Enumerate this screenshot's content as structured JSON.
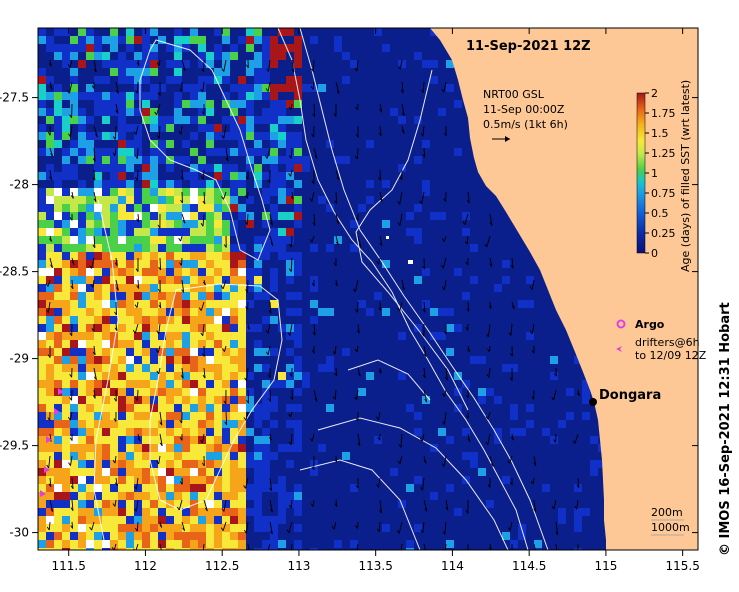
{
  "map": {
    "title": "11-Sep-2021 12Z",
    "product_label": [
      "NRT00 GSL",
      "11-Sep 00:00Z",
      "0.5m/s (1kt 6h)"
    ],
    "x_ticks": [
      "111.5",
      "112",
      "112.5",
      "113",
      "113.5",
      "114",
      "114.5",
      "115",
      "115.5"
    ],
    "y_ticks": [
      "-27.5",
      "-28",
      "-28.5",
      "-29",
      "-29.5",
      "-30"
    ],
    "xlim": [
      111.3,
      115.6
    ],
    "ylim": [
      -30.1,
      -27.1
    ],
    "city": "Dongara",
    "legend": {
      "argo": "Argo",
      "drifters_line1": "drifters@6h",
      "drifters_line2": "to 12/09 12Z"
    },
    "depth_labels": [
      "200m",
      "1000m"
    ],
    "credit": "© IMOS 16-Sep-2021 12:31 Hobart",
    "colors": {
      "land": "#fdc896",
      "ocean_deep": "#0a1e8c",
      "contour": "#ffffff",
      "argo": "#e040e0"
    }
  },
  "colorbar": {
    "label": "Age (days) of filled SST (wrt latest)",
    "ticks": [
      "2",
      "1.75",
      "1.5",
      "1.25",
      "1",
      "0.75",
      "0.5",
      "0.25",
      "0"
    ],
    "range": [
      0,
      2
    ],
    "colors": [
      "#08127a",
      "#1030c8",
      "#1ea0e6",
      "#18d0c8",
      "#4bd04a",
      "#c4e84a",
      "#f8e83a",
      "#f6a41a",
      "#e86418",
      "#a8161a"
    ]
  }
}
